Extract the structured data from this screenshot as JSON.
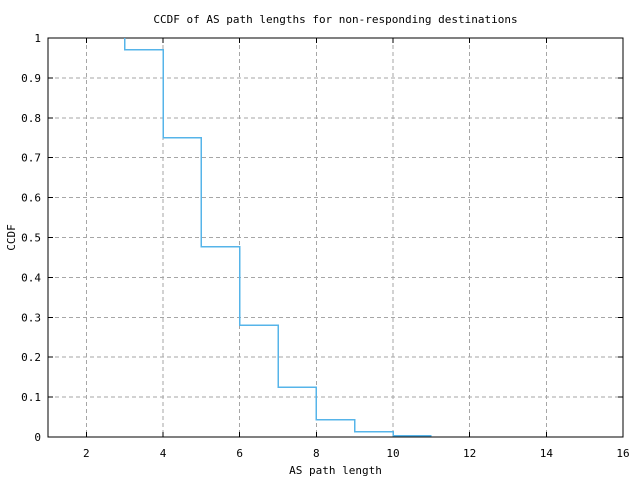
{
  "chart_data": {
    "type": "line",
    "subtype": "step",
    "title": "CCDF of AS path lengths for non-responding destinations",
    "xlabel": "AS path length",
    "ylabel": "CCDF",
    "xlim": [
      1,
      16
    ],
    "ylim": [
      0,
      1
    ],
    "grid": true,
    "legend": "none",
    "x_ticks": {
      "values": [
        2,
        4,
        6,
        8,
        10,
        12,
        14,
        16
      ],
      "labels": [
        "2",
        "4",
        "6",
        "8",
        "10",
        "12",
        "14",
        "16"
      ]
    },
    "y_ticks": {
      "values": [
        0,
        0.1,
        0.2,
        0.3,
        0.4,
        0.5,
        0.6,
        0.7,
        0.8,
        0.9,
        1
      ],
      "labels": [
        "0",
        "0.1",
        "0.2",
        "0.3",
        "0.4",
        "0.5",
        "0.6",
        "0.7",
        "0.8",
        "0.9",
        "1"
      ]
    },
    "series": [
      {
        "name": "ccdf-as-path-length",
        "points": [
          [
            3,
            1.0
          ],
          [
            3,
            0.97
          ],
          [
            4,
            0.97
          ],
          [
            4,
            0.75
          ],
          [
            5,
            0.75
          ],
          [
            5,
            0.477
          ],
          [
            6,
            0.477
          ],
          [
            6,
            0.28
          ],
          [
            7,
            0.28
          ],
          [
            7,
            0.125
          ],
          [
            8,
            0.125
          ],
          [
            8,
            0.043
          ],
          [
            9,
            0.043
          ],
          [
            9,
            0.013
          ],
          [
            10,
            0.013
          ],
          [
            10,
            0.003
          ],
          [
            11,
            0.003
          ]
        ]
      }
    ],
    "colors": {
      "line": "#56b4e9",
      "grid": "#a6a6a6",
      "border": "#000000",
      "text": "#000000",
      "background": "#ffffff"
    }
  }
}
